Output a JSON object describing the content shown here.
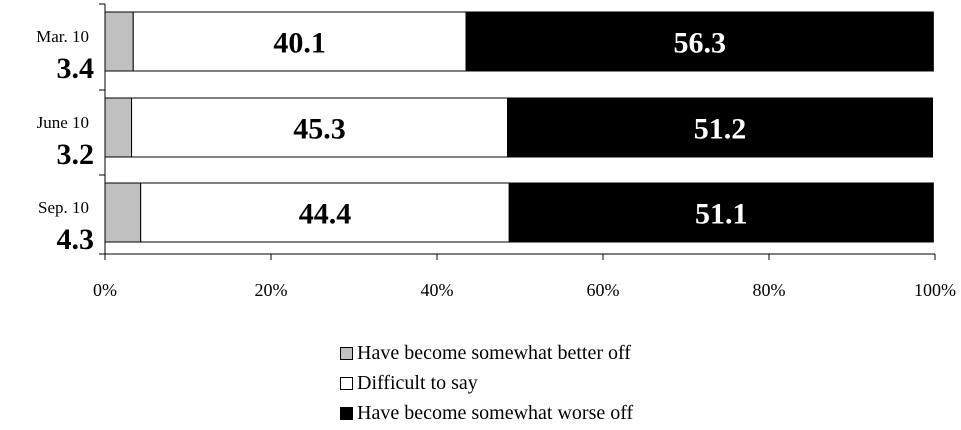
{
  "chart_data": {
    "type": "bar",
    "orientation": "horizontal",
    "stacked": true,
    "categories": [
      "Mar. 10",
      "June 10",
      "Sep. 10"
    ],
    "series": [
      {
        "name": "Have become somewhat better off",
        "values": [
          3.4,
          3.2,
          4.3
        ],
        "color": "#c0c0c0"
      },
      {
        "name": "Difficult to say",
        "values": [
          40.1,
          45.3,
          44.4
        ],
        "color": "#ffffff"
      },
      {
        "name": "Have become somewhat worse off",
        "values": [
          56.3,
          51.2,
          51.1
        ],
        "color": "#000000"
      }
    ],
    "xticks": [
      "0%",
      "20%",
      "40%",
      "60%",
      "80%",
      "100%"
    ],
    "xlim": [
      0,
      100
    ],
    "legend_position": "bottom",
    "grid": false
  }
}
